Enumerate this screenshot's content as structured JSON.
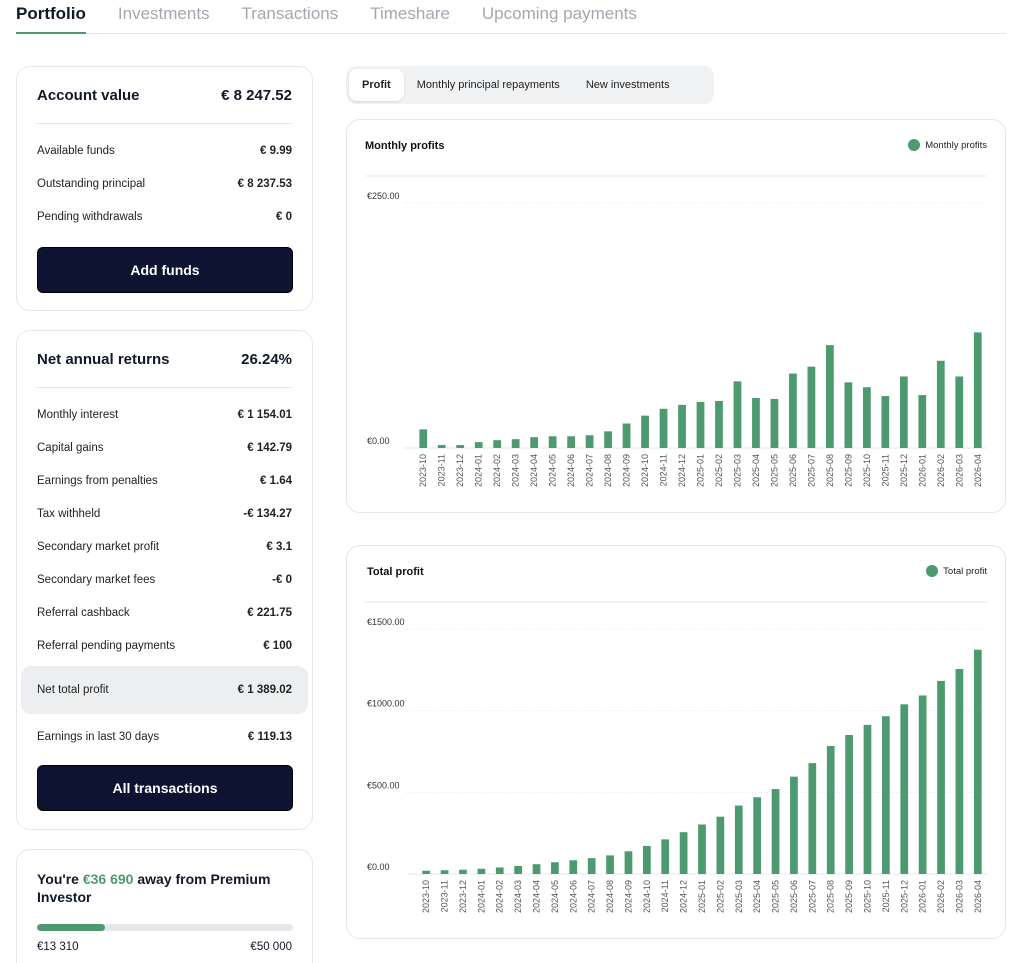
{
  "tabs": [
    "Portfolio",
    "Investments",
    "Transactions",
    "Timeshare",
    "Upcoming payments"
  ],
  "account": {
    "title": "Account value",
    "value": "€ 8 247.52",
    "rows": [
      {
        "label": "Available funds",
        "value": "€ 9.99"
      },
      {
        "label": "Outstanding principal",
        "value": "€ 8 237.53"
      },
      {
        "label": "Pending withdrawals",
        "value": "€ 0"
      }
    ],
    "button": "Add funds"
  },
  "returns": {
    "title": "Net annual returns",
    "value": "26.24%",
    "rows": [
      {
        "label": "Monthly interest",
        "value": "€ 1 154.01"
      },
      {
        "label": "Capital gains",
        "value": "€ 142.79"
      },
      {
        "label": "Earnings from penalties",
        "value": "€ 1.64"
      },
      {
        "label": "Tax withheld",
        "value": "-€ 134.27"
      },
      {
        "label": "Secondary market profit",
        "value": "€ 3.1"
      },
      {
        "label": "Secondary market fees",
        "value": "-€ 0"
      },
      {
        "label": "Referral cashback",
        "value": "€ 221.75"
      },
      {
        "label": "Referral pending payments",
        "value": "€ 100"
      }
    ],
    "total": {
      "label": "Net total profit",
      "value": "€ 1 389.02"
    },
    "last30": {
      "label": "Earnings in last 30 days",
      "value": "€ 119.13"
    },
    "button": "All transactions"
  },
  "premium": {
    "prefix": "You're ",
    "amount": "€36 690",
    "suffix": " away from Premium Investor",
    "current": "€13 310",
    "target": "€50 000",
    "progress": 0.266,
    "accent": "#4e9a70"
  },
  "segments": [
    "Profit",
    "Monthly principal repayments",
    "New investments"
  ],
  "chart_data": [
    {
      "type": "bar",
      "title": "Monthly profits",
      "legend": "Monthly profits",
      "color": "#4e9a70",
      "ylim": [
        0,
        250
      ],
      "yticks": [
        "€250.00",
        "€0.00"
      ],
      "ytick_values": [
        250,
        0
      ],
      "categories": [
        "2023-10",
        "2023-11",
        "2023-12",
        "2024-01",
        "2024-02",
        "2024-03",
        "2024-04",
        "2024-05",
        "2024-06",
        "2024-07",
        "2024-08",
        "2024-09",
        "2024-10",
        "2024-11",
        "2024-12",
        "2025-01",
        "2025-02",
        "2025-03",
        "2025-04",
        "2025-05",
        "2025-06",
        "2025-07",
        "2025-08",
        "2025-09",
        "2025-10",
        "2025-11",
        "2025-12",
        "2026-01",
        "2026-02",
        "2026-03",
        "2026-04"
      ],
      "values": [
        19,
        3,
        3,
        6,
        8,
        9,
        11,
        12,
        12,
        13,
        17,
        25,
        33,
        40,
        44,
        47,
        48,
        68,
        51,
        50,
        76,
        83,
        105,
        67,
        62,
        53,
        73,
        54,
        89,
        73,
        118
      ]
    },
    {
      "type": "bar",
      "title": "Total profit",
      "legend": "Total profit",
      "color": "#4e9a70",
      "ylim": [
        0,
        1500
      ],
      "yticks": [
        "€1500.00",
        "€1000.00",
        "€500.00",
        "€0.00"
      ],
      "ytick_values": [
        1500,
        1000,
        500,
        0
      ],
      "categories": [
        "2023-10",
        "2023-11",
        "2023-12",
        "2024-01",
        "2024-02",
        "2024-03",
        "2024-04",
        "2024-05",
        "2024-06",
        "2024-07",
        "2024-08",
        "2024-09",
        "2024-10",
        "2024-11",
        "2024-12",
        "2025-01",
        "2025-02",
        "2025-03",
        "2025-04",
        "2025-05",
        "2025-06",
        "2025-07",
        "2025-08",
        "2025-09",
        "2025-10",
        "2025-11",
        "2025-12",
        "2026-01",
        "2026-02",
        "2026-03",
        "2026-04"
      ],
      "values": [
        20,
        23,
        26,
        32,
        40,
        49,
        60,
        72,
        84,
        97,
        114,
        139,
        172,
        212,
        256,
        303,
        351,
        419,
        470,
        520,
        596,
        679,
        784,
        851,
        913,
        966,
        1039,
        1093,
        1182,
        1255,
        1373
      ]
    }
  ]
}
